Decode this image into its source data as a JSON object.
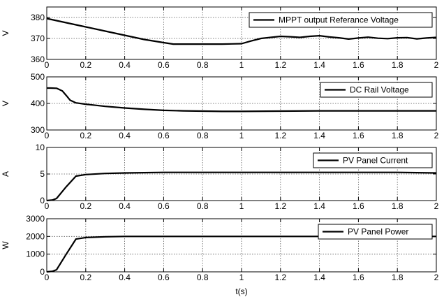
{
  "figure": {
    "xlabel": "t(s)"
  },
  "chart_data": [
    {
      "type": "line",
      "title": "",
      "xlabel": "",
      "ylabel": "V",
      "xlim": [
        0,
        2
      ],
      "ylim": [
        360,
        385
      ],
      "xticks": [
        "0",
        "0.2",
        "0.4",
        "0.6",
        "0.8",
        "1",
        "1.2",
        "1.4",
        "1.6",
        "1.8",
        "2"
      ],
      "yticks": [
        "360",
        "370",
        "380"
      ],
      "grid": true,
      "legend_position": "top-right",
      "series": [
        {
          "name": "MPPT output Referance Voltage",
          "color": "#000000",
          "x": [
            0,
            0.05,
            0.1,
            0.15,
            0.2,
            0.3,
            0.4,
            0.5,
            0.6,
            0.65,
            0.7,
            0.8,
            0.9,
            0.95,
            1.0,
            1.05,
            1.1,
            1.15,
            1.2,
            1.25,
            1.3,
            1.35,
            1.4,
            1.45,
            1.5,
            1.55,
            1.6,
            1.65,
            1.7,
            1.75,
            1.8,
            1.85,
            1.9,
            1.95,
            2.0
          ],
          "y": [
            379.5,
            378.5,
            377.5,
            376.5,
            375.5,
            373.5,
            371.5,
            369.5,
            368.0,
            367.3,
            367.3,
            367.3,
            367.3,
            367.4,
            367.5,
            368.8,
            370.0,
            370.5,
            371.0,
            370.8,
            370.5,
            371.0,
            371.3,
            370.7,
            370.3,
            369.7,
            370.2,
            370.6,
            370.1,
            369.9,
            370.3,
            370.4,
            369.8,
            370.2,
            370.5
          ]
        }
      ]
    },
    {
      "type": "line",
      "title": "",
      "xlabel": "",
      "ylabel": "V",
      "xlim": [
        0,
        2
      ],
      "ylim": [
        300,
        500
      ],
      "xticks": [
        "0",
        "0.2",
        "0.4",
        "0.6",
        "0.8",
        "1",
        "1.2",
        "1.4",
        "1.6",
        "1.8",
        "2"
      ],
      "yticks": [
        "300",
        "400",
        "500"
      ],
      "grid": true,
      "legend_position": "top-right",
      "series": [
        {
          "name": "DC Rail Voltage",
          "color": "#000000",
          "x": [
            0,
            0.02,
            0.05,
            0.08,
            0.1,
            0.12,
            0.15,
            0.2,
            0.3,
            0.4,
            0.5,
            0.6,
            0.7,
            0.8,
            0.9,
            1.0,
            1.2,
            1.4,
            1.6,
            1.8,
            2.0
          ],
          "y": [
            458,
            458,
            457,
            447,
            430,
            412,
            402,
            397,
            389,
            383,
            378,
            374,
            372,
            371,
            370,
            370,
            371,
            372,
            372,
            372,
            372
          ]
        }
      ]
    },
    {
      "type": "line",
      "title": "",
      "xlabel": "",
      "ylabel": "A",
      "xlim": [
        0,
        2
      ],
      "ylim": [
        0,
        10
      ],
      "xticks": [
        "0",
        "0.2",
        "0.4",
        "0.6",
        "0.8",
        "1",
        "1.2",
        "1.4",
        "1.6",
        "1.8",
        "2"
      ],
      "yticks": [
        "0",
        "5",
        "10"
      ],
      "grid": true,
      "legend_position": "top-right",
      "series": [
        {
          "name": "PV Panel Current",
          "color": "#000000",
          "x": [
            0,
            0.03,
            0.05,
            0.1,
            0.15,
            0.2,
            0.3,
            0.4,
            0.6,
            0.8,
            1.0,
            1.2,
            1.4,
            1.6,
            1.8,
            2.0
          ],
          "y": [
            0,
            0.1,
            0.4,
            2.6,
            4.6,
            4.9,
            5.1,
            5.2,
            5.3,
            5.3,
            5.3,
            5.3,
            5.3,
            5.3,
            5.3,
            5.2
          ]
        }
      ]
    },
    {
      "type": "line",
      "title": "",
      "xlabel": "t(s)",
      "ylabel": "W",
      "xlim": [
        0,
        2
      ],
      "ylim": [
        0,
        3000
      ],
      "xticks": [
        "0",
        "0.2",
        "0.4",
        "0.6",
        "0.8",
        "1",
        "1.2",
        "1.4",
        "1.6",
        "1.8",
        "2"
      ],
      "yticks": [
        "0",
        "1000",
        "2000",
        "3000"
      ],
      "grid": true,
      "legend_position": "top-right",
      "series": [
        {
          "name": "PV Panel Power",
          "color": "#000000",
          "x": [
            0,
            0.03,
            0.05,
            0.1,
            0.15,
            0.2,
            0.3,
            0.4,
            0.6,
            0.8,
            1.0,
            1.2,
            1.4,
            1.6,
            1.8,
            2.0
          ],
          "y": [
            0,
            30,
            120,
            1000,
            1850,
            1940,
            1980,
            2000,
            2000,
            2000,
            2000,
            2000,
            2000,
            2000,
            2000,
            2000
          ]
        }
      ]
    }
  ]
}
